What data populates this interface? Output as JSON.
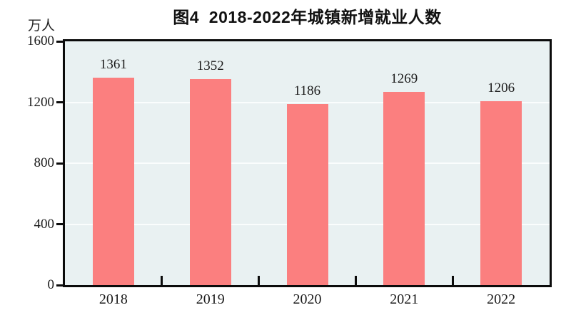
{
  "chart_data": {
    "type": "bar",
    "title": "图4  2018-2022年城镇新增就业人数",
    "categories": [
      "2018",
      "2019",
      "2020",
      "2021",
      "2022"
    ],
    "values": [
      1361,
      1352,
      1186,
      1269,
      1206
    ],
    "value_labels": [
      "1361",
      "1352",
      "1186",
      "1269",
      "1206"
    ],
    "xlabel": "",
    "ylabel": "万人",
    "ylim": [
      0,
      1600
    ],
    "yticks": [
      0,
      400,
      800,
      1200,
      1600
    ],
    "grid": true,
    "legend": "none",
    "colors": {
      "bar": "#fb7f7f",
      "plot_background": "#e9f1f2",
      "gridline": "#fafdfd",
      "axis": "#0b0b0b",
      "text": "#1b1b1b"
    }
  }
}
